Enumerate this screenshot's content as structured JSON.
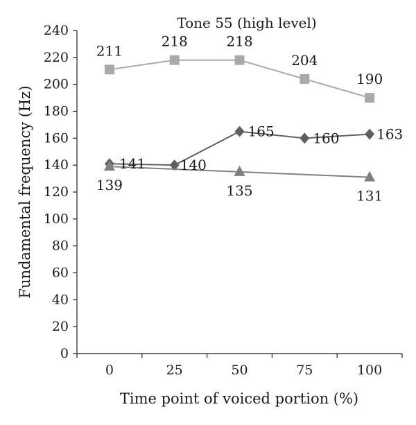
{
  "chart_data": {
    "type": "line",
    "title": "Tone 55 (high level)",
    "xlabel": "Time point of voiced portion (%)",
    "ylabel": "Fundamental frequency (Hz)",
    "categories": [
      "0",
      "25",
      "50",
      "75",
      "100"
    ],
    "x": [
      0,
      25,
      50,
      75,
      100
    ],
    "ylim": [
      0,
      240
    ],
    "yticks": [
      0,
      20,
      40,
      60,
      80,
      100,
      120,
      140,
      160,
      180,
      200,
      220,
      240
    ],
    "grid": false,
    "legend": "none",
    "series": [
      {
        "marker": "square",
        "color": "#a9a9a9",
        "values": [
          211,
          218,
          218,
          204,
          190
        ],
        "labels": [
          "211",
          "218",
          "218",
          "204",
          "190"
        ]
      },
      {
        "marker": "diamond",
        "color": "#5f5f5f",
        "values": [
          141,
          140,
          165,
          160,
          163
        ],
        "labels": [
          "141",
          "140",
          "165",
          "160",
          "163"
        ]
      },
      {
        "marker": "triangle",
        "color": "#808080",
        "values": [
          139,
          null,
          135,
          null,
          131
        ],
        "labels": [
          "139",
          "",
          "135",
          "",
          "131"
        ]
      }
    ]
  }
}
